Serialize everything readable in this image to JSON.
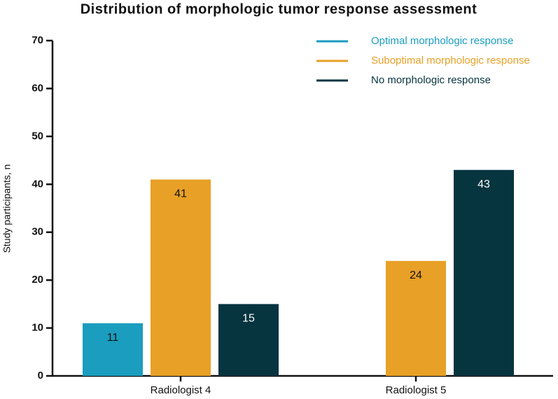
{
  "chart_data": {
    "type": "bar",
    "title": "Distribution of morphologic tumor response assessment",
    "y_label": "Study participants, n",
    "categories": [
      "Radiologist 4",
      "Radiologist 5"
    ],
    "series": [
      {
        "name": "Optimal morphologic response",
        "color": "#1a9dbf",
        "values": [
          11,
          null
        ]
      },
      {
        "name": "Suboptimal morphologic response",
        "color": "#e8a026",
        "values": [
          41,
          24
        ]
      },
      {
        "name": "No morphologic response",
        "color": "#06343f",
        "values": [
          15,
          43
        ]
      }
    ],
    "ylim": [
      0,
      70
    ],
    "yticks": [
      0,
      10,
      20,
      30,
      40,
      50,
      60,
      70
    ],
    "legend": "upper right",
    "grid": false
  }
}
